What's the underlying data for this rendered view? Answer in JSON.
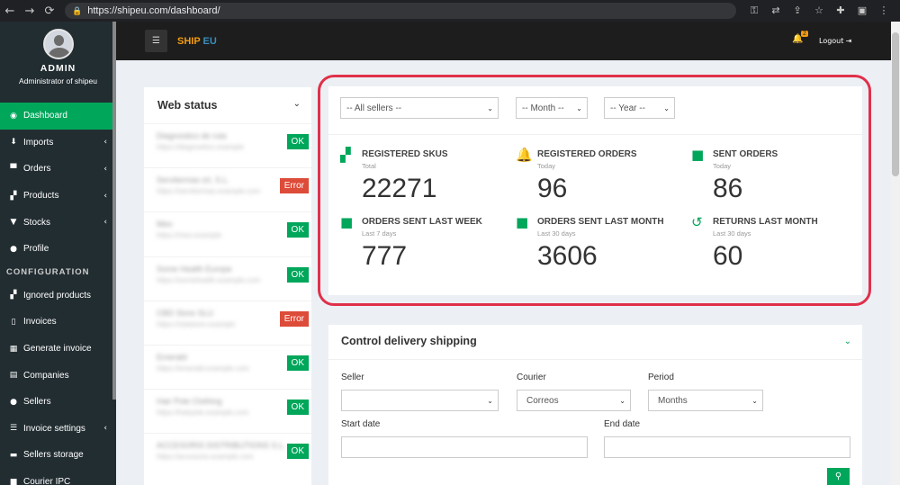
{
  "browser": {
    "url": "https://shipeu.com/dashboard/",
    "nav": {
      "back": "←",
      "forward": "→",
      "reload": "⟳"
    },
    "icons": [
      "key-icon",
      "translate-icon",
      "share-icon",
      "star-icon",
      "extensions-icon",
      "sidebar-icon",
      "menu-icon"
    ]
  },
  "sidebar": {
    "user_name": "ADMIN",
    "user_role": "Administrator of shipeu",
    "items": [
      {
        "label": "Dashboard",
        "icon": "dashboard-icon",
        "active": true
      },
      {
        "label": "Imports",
        "icon": "download-icon",
        "has_submenu": true
      },
      {
        "label": "Orders",
        "icon": "cart-icon",
        "has_submenu": true
      },
      {
        "label": "Products",
        "icon": "cubes-icon",
        "has_submenu": true
      },
      {
        "label": "Stocks",
        "icon": "trophy-icon",
        "has_submenu": true
      },
      {
        "label": "Profile",
        "icon": "user-icon"
      }
    ],
    "config_header": "CONFIGURATION",
    "config_items": [
      {
        "label": "Ignored products",
        "icon": "cubes-icon"
      },
      {
        "label": "Invoices",
        "icon": "file-icon"
      },
      {
        "label": "Generate invoice",
        "icon": "calculator-icon"
      },
      {
        "label": "Companies",
        "icon": "building-icon"
      },
      {
        "label": "Sellers",
        "icon": "users-icon"
      },
      {
        "label": "Invoice settings",
        "icon": "list-icon",
        "has_submenu": true
      },
      {
        "label": "Sellers storage",
        "icon": "archive-icon"
      },
      {
        "label": "Courier IPC",
        "icon": "truck-icon"
      }
    ]
  },
  "header": {
    "brand_part1": "SHIP",
    "brand_part2": "EU",
    "notification_count": "2",
    "logout_label": "Logout"
  },
  "web_status": {
    "title": "Web status",
    "rows": [
      {
        "name": "Diagnostico de ruta",
        "url": "https://diagnostico.example",
        "status": "OK"
      },
      {
        "name": "Servitermas srl, S.L.",
        "url": "https://servitermas.example.com",
        "status": "Error"
      },
      {
        "name": "Meo",
        "url": "https://meo.example",
        "status": "OK"
      },
      {
        "name": "Some Health Europe",
        "url": "https://somehealth.example.com",
        "status": "OK"
      },
      {
        "name": "CBD Store SLU",
        "url": "https://cbdstore.example",
        "status": "Error"
      },
      {
        "name": "Emerald",
        "url": "https://emerald.example.com",
        "status": "OK"
      },
      {
        "name": "Hair Pole Clothing",
        "url": "https://hairpole.example.com",
        "status": "OK"
      },
      {
        "name": "ACCESORIS DISTRIBUTIONS S.L.",
        "url": "https://accesoris.example.com",
        "status": "OK"
      }
    ]
  },
  "filters": {
    "seller": "-- All sellers --",
    "month": "-- Month --",
    "year": "-- Year --"
  },
  "stats": [
    {
      "label": "REGISTERED SKUS",
      "sub": "Total",
      "value": "22271",
      "icon": "cubes-icon"
    },
    {
      "label": "REGISTERED ORDERS",
      "sub": "Today",
      "value": "96",
      "icon": "bell-icon"
    },
    {
      "label": "SENT ORDERS",
      "sub": "Today",
      "value": "86",
      "icon": "truck-icon"
    },
    {
      "label": "ORDERS SENT LAST WEEK",
      "sub": "Last 7 days",
      "value": "777",
      "icon": "truck-icon"
    },
    {
      "label": "ORDERS SENT LAST MONTH",
      "sub": "Last 30 days",
      "value": "3606",
      "icon": "truck-icon"
    },
    {
      "label": "RETURNS LAST MONTH",
      "sub": "Last 30 days",
      "value": "60",
      "icon": "undo-icon"
    }
  ],
  "delivery": {
    "title": "Control delivery shipping",
    "seller_label": "Seller",
    "seller_value": "",
    "courier_label": "Courier",
    "courier_value": "Correos",
    "period_label": "Period",
    "period_value": "Months",
    "start_label": "Start date",
    "start_value": "",
    "end_label": "End date",
    "end_value": ""
  }
}
